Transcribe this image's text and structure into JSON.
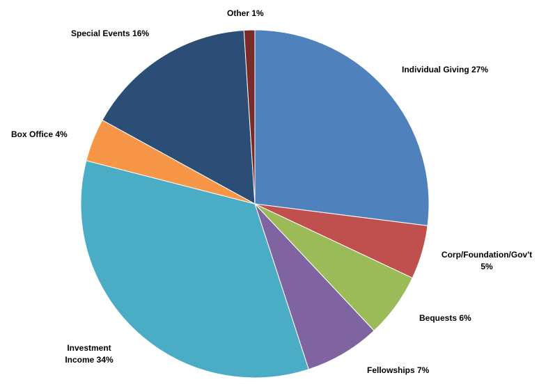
{
  "chart_data": {
    "type": "pie",
    "title": "",
    "start_angle_deg": 0,
    "direction": "clockwise",
    "slices": [
      {
        "label": "Individual Giving",
        "value": 27,
        "display": [
          "Individual Giving 27%"
        ],
        "color": "#4F81BD"
      },
      {
        "label": "Corp/Foundation/Gov't",
        "value": 5,
        "display": [
          "Corp/Foundation/Gov't",
          "5%"
        ],
        "color": "#C0504D"
      },
      {
        "label": "Bequests",
        "value": 6,
        "display": [
          "Bequests 6%"
        ],
        "color": "#9BBB59"
      },
      {
        "label": "Fellowships",
        "value": 7,
        "display": [
          "Fellowships 7%"
        ],
        "color": "#8064A2"
      },
      {
        "label": "Investment Income",
        "value": 34,
        "display": [
          "Investment",
          "Income 34%"
        ],
        "color": "#4BACC6"
      },
      {
        "label": "Box Office",
        "value": 4,
        "display": [
          "Box Office 4%"
        ],
        "color": "#F79646"
      },
      {
        "label": "Special Events",
        "value": 16,
        "display": [
          "Special Events 16%"
        ],
        "color": "#2C4D75"
      },
      {
        "label": "Other",
        "value": 1,
        "display": [
          "Other 1%"
        ],
        "color": "#772C2A"
      }
    ]
  }
}
